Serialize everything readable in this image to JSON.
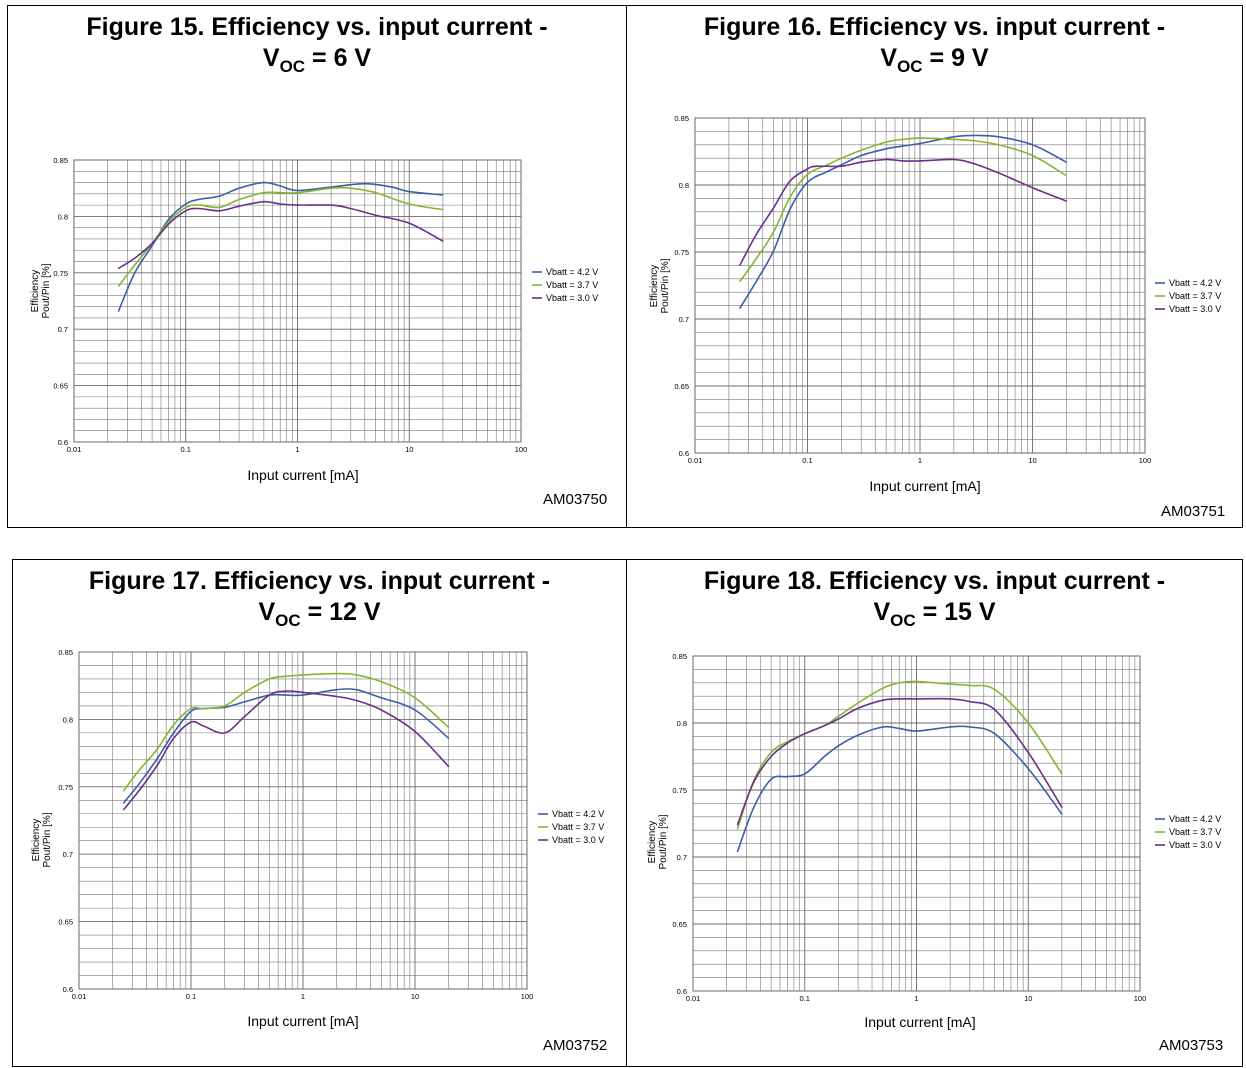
{
  "chart_data": [
    {
      "type": "line",
      "title": "Figure 15. Efficiency vs. input current -",
      "subtitle_prefix": "V",
      "subtitle_sub": "OC",
      "subtitle_suffix": " = 6 V",
      "xlabel": "Input current  [mA]",
      "ylabel": [
        "Efficiency",
        "Pout/Pin [%]"
      ],
      "x_scale": "log",
      "xlim": [
        0.01,
        100
      ],
      "ylim": [
        0.6,
        0.85
      ],
      "xticks": [
        "0.01",
        "0.1",
        "1",
        "10",
        "100"
      ],
      "yticks": [
        "0.6",
        "0.65",
        "0.7",
        "0.75",
        "0.8",
        "0.85"
      ],
      "code": "AM03750",
      "legend_position": "right",
      "series": [
        {
          "name": "Vbatt = 4.2 V",
          "color": "#3a5fa7",
          "x": [
            0.025,
            0.035,
            0.05,
            0.07,
            0.1,
            0.13,
            0.2,
            0.3,
            0.5,
            0.7,
            1,
            2,
            4,
            7,
            10,
            20
          ],
          "y": [
            0.716,
            0.75,
            0.774,
            0.797,
            0.811,
            0.815,
            0.818,
            0.825,
            0.83,
            0.827,
            0.823,
            0.826,
            0.829,
            0.826,
            0.822,
            0.819
          ]
        },
        {
          "name": "Vbatt = 3.7 V",
          "color": "#86b530",
          "x": [
            0.025,
            0.035,
            0.05,
            0.07,
            0.1,
            0.13,
            0.2,
            0.3,
            0.5,
            0.7,
            1,
            2,
            3,
            5,
            10,
            20
          ],
          "y": [
            0.738,
            0.757,
            0.776,
            0.795,
            0.808,
            0.81,
            0.808,
            0.815,
            0.821,
            0.821,
            0.821,
            0.825,
            0.825,
            0.821,
            0.811,
            0.806
          ]
        },
        {
          "name": "Vbatt = 3.0 V",
          "color": "#6b2f8a",
          "x": [
            0.025,
            0.035,
            0.05,
            0.07,
            0.1,
            0.13,
            0.2,
            0.3,
            0.5,
            0.7,
            1,
            2,
            3,
            5,
            10,
            20
          ],
          "y": [
            0.754,
            0.763,
            0.776,
            0.793,
            0.805,
            0.807,
            0.805,
            0.809,
            0.813,
            0.811,
            0.81,
            0.81,
            0.807,
            0.801,
            0.794,
            0.778
          ]
        }
      ]
    },
    {
      "type": "line",
      "title": "Figure 16. Efficiency vs. input current -",
      "subtitle_prefix": "V",
      "subtitle_sub": "OC",
      "subtitle_suffix": " = 9 V",
      "xlabel": "Input current  [mA]",
      "ylabel": [
        "Efficiency",
        "Pout/Pin [%]"
      ],
      "x_scale": "log",
      "xlim": [
        0.01,
        100
      ],
      "ylim": [
        0.6,
        0.85
      ],
      "xticks": [
        "0.01",
        "0.1",
        "1",
        "10",
        "100"
      ],
      "yticks": [
        "0.6",
        "0.65",
        "0.7",
        "0.75",
        "0.8",
        "0.85"
      ],
      "code": "AM03751",
      "legend_position": "right",
      "series": [
        {
          "name": "Vbatt = 4.2 V",
          "color": "#3a5fa7",
          "x": [
            0.025,
            0.035,
            0.05,
            0.07,
            0.1,
            0.15,
            0.2,
            0.3,
            0.5,
            0.7,
            1,
            2,
            3,
            5,
            10,
            20
          ],
          "y": [
            0.708,
            0.728,
            0.751,
            0.782,
            0.802,
            0.81,
            0.815,
            0.822,
            0.827,
            0.829,
            0.831,
            0.836,
            0.837,
            0.836,
            0.83,
            0.817
          ]
        },
        {
          "name": "Vbatt = 3.7 V",
          "color": "#86b530",
          "x": [
            0.025,
            0.035,
            0.05,
            0.07,
            0.1,
            0.15,
            0.2,
            0.3,
            0.5,
            0.7,
            1,
            2,
            3,
            5,
            10,
            20
          ],
          "y": [
            0.728,
            0.745,
            0.765,
            0.791,
            0.808,
            0.815,
            0.82,
            0.826,
            0.832,
            0.834,
            0.835,
            0.834,
            0.833,
            0.83,
            0.822,
            0.807
          ]
        },
        {
          "name": "Vbatt = 3.0 V",
          "color": "#6b2f8a",
          "x": [
            0.025,
            0.035,
            0.05,
            0.07,
            0.1,
            0.12,
            0.2,
            0.3,
            0.5,
            0.7,
            1,
            2,
            3,
            5,
            10,
            20
          ],
          "y": [
            0.74,
            0.763,
            0.783,
            0.803,
            0.812,
            0.814,
            0.814,
            0.817,
            0.819,
            0.818,
            0.818,
            0.819,
            0.816,
            0.809,
            0.798,
            0.788
          ]
        }
      ]
    },
    {
      "type": "line",
      "title": "Figure 17. Efficiency vs. input current -",
      "subtitle_prefix": "V",
      "subtitle_sub": "OC",
      "subtitle_suffix": " = 12 V",
      "xlabel": "Input current  [mA]",
      "ylabel": [
        "Efficiency",
        "Pout/Pin [%]"
      ],
      "x_scale": "log",
      "xlim": [
        0.01,
        100
      ],
      "ylim": [
        0.6,
        0.85
      ],
      "xticks": [
        "0.01",
        "0.1",
        "1",
        "10",
        "100"
      ],
      "yticks": [
        "0.6",
        "0.65",
        "0.7",
        "0.75",
        "0.8",
        "0.85"
      ],
      "code": "AM03752",
      "legend_position": "right",
      "series": [
        {
          "name": "Vbatt = 4.2 V",
          "color": "#3a5fa7",
          "x": [
            0.025,
            0.035,
            0.05,
            0.07,
            0.1,
            0.13,
            0.2,
            0.3,
            0.5,
            0.7,
            1,
            2,
            3,
            5,
            10,
            20
          ],
          "y": [
            0.738,
            0.753,
            0.771,
            0.79,
            0.806,
            0.808,
            0.809,
            0.813,
            0.818,
            0.818,
            0.818,
            0.822,
            0.822,
            0.816,
            0.807,
            0.786
          ]
        },
        {
          "name": "Vbatt = 3.7 V",
          "color": "#86b530",
          "x": [
            0.025,
            0.035,
            0.05,
            0.07,
            0.1,
            0.13,
            0.2,
            0.3,
            0.5,
            0.7,
            1,
            2,
            3,
            5,
            10,
            20
          ],
          "y": [
            0.747,
            0.763,
            0.778,
            0.796,
            0.808,
            0.808,
            0.81,
            0.82,
            0.83,
            0.832,
            0.833,
            0.834,
            0.833,
            0.828,
            0.816,
            0.794
          ]
        },
        {
          "name": "Vbatt = 3.0 V",
          "color": "#6b2f8a",
          "x": [
            0.025,
            0.035,
            0.05,
            0.07,
            0.1,
            0.13,
            0.2,
            0.3,
            0.5,
            0.7,
            1,
            2,
            3,
            5,
            10,
            20
          ],
          "y": [
            0.733,
            0.748,
            0.766,
            0.786,
            0.798,
            0.795,
            0.79,
            0.802,
            0.818,
            0.821,
            0.82,
            0.817,
            0.814,
            0.807,
            0.791,
            0.765
          ]
        }
      ]
    },
    {
      "type": "line",
      "title": "Figure 18. Efficiency vs. input current -",
      "subtitle_prefix": "V",
      "subtitle_sub": "OC",
      "subtitle_suffix": " = 15 V",
      "xlabel": "Input current [mA]",
      "ylabel": [
        "Efficiency",
        "Pout/Pin [%]"
      ],
      "x_scale": "log",
      "xlim": [
        0.01,
        100
      ],
      "ylim": [
        0.6,
        0.85
      ],
      "xticks": [
        "0.01",
        "0.1",
        "1",
        "10",
        "100"
      ],
      "yticks": [
        "0.6",
        "0.65",
        "0.7",
        "0.75",
        "0.8",
        "0.85"
      ],
      "code": "AM03753",
      "legend_position": "right",
      "series": [
        {
          "name": "Vbatt = 4.2 V",
          "color": "#3a5fa7",
          "x": [
            0.025,
            0.035,
            0.05,
            0.07,
            0.1,
            0.15,
            0.2,
            0.3,
            0.5,
            0.7,
            1,
            2,
            3,
            5,
            10,
            20
          ],
          "y": [
            0.704,
            0.737,
            0.758,
            0.76,
            0.762,
            0.775,
            0.783,
            0.791,
            0.797,
            0.796,
            0.794,
            0.797,
            0.797,
            0.792,
            0.766,
            0.732
          ]
        },
        {
          "name": "Vbatt = 3.7 V",
          "color": "#86b530",
          "x": [
            0.025,
            0.035,
            0.05,
            0.07,
            0.1,
            0.15,
            0.2,
            0.3,
            0.5,
            0.7,
            1,
            2,
            3,
            5,
            10,
            20
          ],
          "y": [
            0.721,
            0.757,
            0.778,
            0.786,
            0.792,
            0.798,
            0.805,
            0.815,
            0.826,
            0.83,
            0.831,
            0.829,
            0.828,
            0.825,
            0.8,
            0.762
          ]
        },
        {
          "name": "Vbatt = 3.0 V",
          "color": "#6b2f8a",
          "x": [
            0.025,
            0.035,
            0.05,
            0.07,
            0.1,
            0.15,
            0.2,
            0.3,
            0.5,
            0.7,
            1,
            2,
            3,
            5,
            10,
            20
          ],
          "y": [
            0.724,
            0.756,
            0.775,
            0.785,
            0.792,
            0.798,
            0.803,
            0.811,
            0.817,
            0.818,
            0.818,
            0.818,
            0.816,
            0.81,
            0.778,
            0.737
          ]
        }
      ]
    }
  ]
}
